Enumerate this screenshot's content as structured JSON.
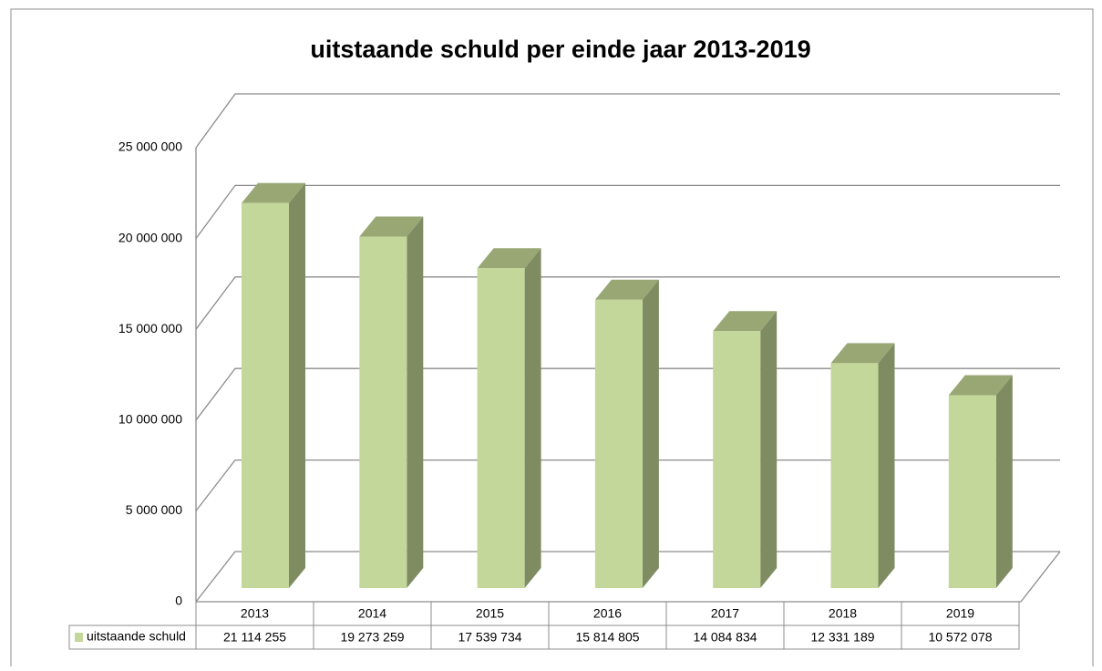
{
  "chart_data": {
    "type": "bar3d",
    "title": "uitstaande schuld per einde jaar 2013-2019",
    "categories": [
      "2013",
      "2014",
      "2015",
      "2016",
      "2017",
      "2018",
      "2019"
    ],
    "series": [
      {
        "name": "uitstaande schuld",
        "color": "#c4d79b",
        "values": [
          21114255,
          19273259,
          17539734,
          15814805,
          14084834,
          12331189,
          10572078
        ],
        "value_labels": [
          "21 114 255",
          "19 273 259",
          "17 539 734",
          "15 814 805",
          "14 084 834",
          "12 331 189",
          "10 572 078"
        ]
      }
    ],
    "ylim": [
      0,
      25000000
    ],
    "yticks": [
      0,
      {
        "value": 5000000,
        "label": "5 000 000"
      },
      {
        "value": 10000000,
        "label": "10 000 000"
      },
      {
        "value": 15000000,
        "label": "15 000 000"
      },
      {
        "value": 20000000,
        "label": "20 000 000"
      },
      {
        "value": 25000000,
        "label": "25 000 000"
      }
    ],
    "grid": true
  }
}
